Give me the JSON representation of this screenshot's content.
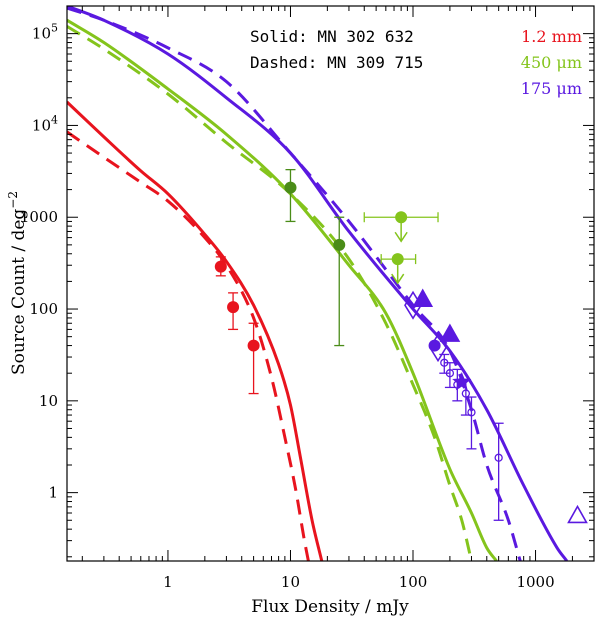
{
  "chart_data": {
    "type": "scatter",
    "title": "",
    "xlabel": "Flux Density / mJy",
    "ylabel": "Source Count / deg",
    "ylabel_exponent": "−2",
    "xscale": "log",
    "yscale": "log",
    "xlim": [
      0.15,
      3000
    ],
    "ylim": [
      0.18,
      200000
    ],
    "x_ticks": [
      {
        "value": 1,
        "label": "1"
      },
      {
        "value": 10,
        "label": "10"
      },
      {
        "value": 100,
        "label": "100"
      },
      {
        "value": 1000,
        "label": "1000"
      }
    ],
    "y_ticks": [
      {
        "value": 1,
        "label": "1",
        "exp": ""
      },
      {
        "value": 10,
        "label": "10",
        "exp": ""
      },
      {
        "value": 100,
        "label": "100",
        "exp": ""
      },
      {
        "value": 1000,
        "label": "1000",
        "exp": ""
      },
      {
        "value": 10000,
        "label": "10",
        "exp": "4"
      },
      {
        "value": 100000,
        "label": "10",
        "exp": "5"
      }
    ],
    "line_styles": [
      {
        "text": "Solid: MN 302 632",
        "dash": "solid"
      },
      {
        "text": "Dashed: MN 309 715",
        "dash": "dashed"
      }
    ],
    "legend": [
      {
        "text": "1.2 mm",
        "color": "#e8141e"
      },
      {
        "text": "450 μm",
        "color": "#84c41c"
      },
      {
        "text": "175 μm",
        "color": "#5a19e0"
      }
    ],
    "series": [
      {
        "color": "#e8141e",
        "solid": [
          [
            0.15,
            18000
          ],
          [
            0.3,
            7500
          ],
          [
            0.6,
            3200
          ],
          [
            1,
            1800
          ],
          [
            2,
            650
          ],
          [
            3,
            330
          ],
          [
            5,
            110
          ],
          [
            8,
            25
          ],
          [
            10,
            9
          ],
          [
            12,
            2.5
          ],
          [
            15,
            0.5
          ],
          [
            18,
            0.18
          ]
        ],
        "dashed": [
          [
            0.15,
            8500
          ],
          [
            0.3,
            4500
          ],
          [
            0.6,
            2400
          ],
          [
            1,
            1500
          ],
          [
            2,
            600
          ],
          [
            3,
            300
          ],
          [
            5,
            80
          ],
          [
            7,
            18
          ],
          [
            9,
            4
          ],
          [
            11,
            1.1
          ],
          [
            13,
            0.3
          ],
          [
            14,
            0.18
          ]
        ]
      },
      {
        "color": "#84c41c",
        "solid": [
          [
            0.15,
            140000
          ],
          [
            0.3,
            80000
          ],
          [
            1,
            25000
          ],
          [
            3,
            8000
          ],
          [
            10,
            1800
          ],
          [
            30,
            300
          ],
          [
            60,
            90
          ],
          [
            100,
            20
          ],
          [
            200,
            1.8
          ],
          [
            300,
            0.6
          ],
          [
            400,
            0.25
          ],
          [
            480,
            0.18
          ]
        ],
        "dashed": [
          [
            0.15,
            120000
          ],
          [
            0.3,
            68000
          ],
          [
            1,
            22000
          ],
          [
            3,
            6500
          ],
          [
            10,
            1800
          ],
          [
            30,
            350
          ],
          [
            60,
            70
          ],
          [
            100,
            15
          ],
          [
            150,
            4
          ],
          [
            200,
            1.2
          ],
          [
            250,
            0.5
          ],
          [
            300,
            0.18
          ]
        ]
      },
      {
        "color": "#5a19e0",
        "solid": [
          [
            0.15,
            200000
          ],
          [
            0.3,
            140000
          ],
          [
            1,
            60000
          ],
          [
            3,
            20000
          ],
          [
            10,
            5000
          ],
          [
            30,
            700
          ],
          [
            100,
            100
          ],
          [
            200,
            35
          ],
          [
            400,
            8
          ],
          [
            800,
            1.2
          ],
          [
            1500,
            0.25
          ],
          [
            1800,
            0.18
          ]
        ],
        "dashed": [
          [
            0.15,
            190000
          ],
          [
            0.3,
            140000
          ],
          [
            1,
            70000
          ],
          [
            3,
            30000
          ],
          [
            10,
            5000
          ],
          [
            30,
            900
          ],
          [
            100,
            110
          ],
          [
            200,
            35
          ],
          [
            300,
            8
          ],
          [
            400,
            2
          ],
          [
            600,
            0.5
          ],
          [
            750,
            0.18
          ]
        ]
      }
    ],
    "points": [
      {
        "marker": "circle",
        "x": 2.7,
        "y": 290,
        "color": "#e8141e",
        "yerr": [
          230,
          370
        ]
      },
      {
        "marker": "circle",
        "x": 3.4,
        "y": 105,
        "color": "#e8141e",
        "yerr": [
          60,
          150
        ]
      },
      {
        "marker": "circle",
        "x": 5,
        "y": 40,
        "color": "#e8141e",
        "yerr": [
          12,
          70
        ]
      },
      {
        "marker": "circle",
        "x": 10,
        "y": 2100,
        "color": "#4a8c18",
        "yerr": [
          900,
          3300
        ]
      },
      {
        "marker": "circle",
        "x": 25,
        "y": 500,
        "color": "#4a8c18",
        "yerr": [
          40,
          1000
        ]
      },
      {
        "marker": "circle",
        "x": 80,
        "y": 1000,
        "color": "#84c41c",
        "xerr": [
          40,
          160
        ],
        "upper_limit": true
      },
      {
        "marker": "circle",
        "x": 75,
        "y": 350,
        "color": "#84c41c",
        "xerr": [
          55,
          105
        ],
        "upper_limit": true
      },
      {
        "marker": "diamond",
        "x": 100,
        "y": 110,
        "color": "#5a19e0",
        "filled": false
      },
      {
        "marker": "triangle",
        "x": 120,
        "y": 125,
        "color": "#5a19e0",
        "filled": true
      },
      {
        "marker": "circle",
        "x": 150,
        "y": 40,
        "color": "#5a19e0"
      },
      {
        "marker": "triangle",
        "x": 200,
        "y": 52,
        "color": "#5a19e0",
        "filled": true
      },
      {
        "marker": "diamond",
        "x": 160,
        "y": 38,
        "color": "#5a19e0",
        "filled": false
      },
      {
        "marker": "small-circle",
        "x": 180,
        "y": 26,
        "color": "#5a19e0",
        "yerr": [
          20,
          32
        ]
      },
      {
        "marker": "small-circle",
        "x": 200,
        "y": 20,
        "color": "#5a19e0",
        "yerr": [
          14,
          26
        ]
      },
      {
        "marker": "small-circle",
        "x": 230,
        "y": 15,
        "color": "#5a19e0",
        "yerr": [
          10,
          22
        ]
      },
      {
        "marker": "star",
        "x": 250,
        "y": 16,
        "color": "#5a19e0"
      },
      {
        "marker": "small-circle",
        "x": 270,
        "y": 12,
        "color": "#5a19e0",
        "yerr": [
          7,
          17
        ]
      },
      {
        "marker": "small-circle",
        "x": 300,
        "y": 7.5,
        "color": "#5a19e0",
        "yerr": [
          3,
          11
        ]
      },
      {
        "marker": "small-circle",
        "x": 500,
        "y": 2.4,
        "color": "#5a19e0",
        "yerr": [
          0.5,
          5.7
        ]
      },
      {
        "marker": "triangle",
        "x": 2200,
        "y": 0.55,
        "color": "#5a19e0",
        "filled": false
      }
    ]
  }
}
